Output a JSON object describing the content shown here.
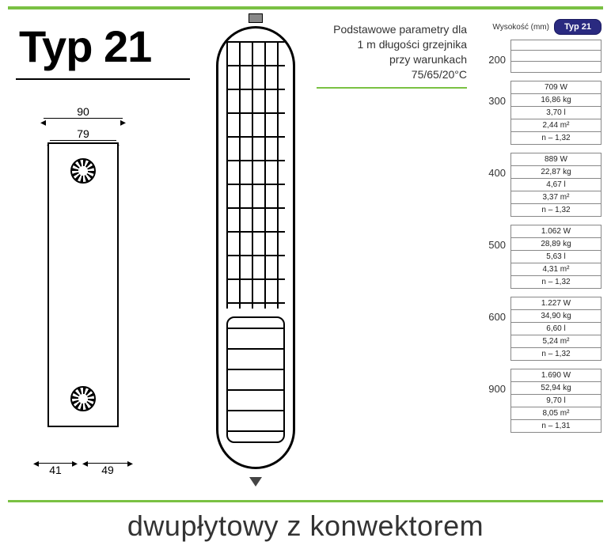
{
  "title": "Typ 21",
  "subtitle": "dwupłytowy z konwektorem",
  "parameters_label": [
    "Podstawowe parametry dla",
    "1 m długości grzejnika",
    "przy warunkach",
    "75/65/20°C"
  ],
  "side_dimensions": {
    "outer_width": "90",
    "inner_width": "79",
    "bottom_left": "41",
    "bottom_right": "49"
  },
  "table": {
    "column_label": "Wysokość (mm)",
    "chip_label": "Typ 21",
    "heights": [
      {
        "h": "200",
        "values": [
          "",
          "",
          ""
        ]
      },
      {
        "h": "300",
        "values": [
          "709 W",
          "16,86 kg",
          "3,70 l",
          "2,44 m²",
          "n – 1,32"
        ]
      },
      {
        "h": "400",
        "values": [
          "889 W",
          "22,87 kg",
          "4,67 l",
          "3,37 m²",
          "n – 1,32"
        ]
      },
      {
        "h": "500",
        "values": [
          "1.062 W",
          "28,89 kg",
          "5,63 l",
          "4,31 m²",
          "n – 1,32"
        ]
      },
      {
        "h": "600",
        "values": [
          "1.227 W",
          "34,90 kg",
          "6,60 l",
          "5,24 m²",
          "n – 1,32"
        ]
      },
      {
        "h": "900",
        "values": [
          "1.690 W",
          "52,94 kg",
          "9,70 l",
          "8,05 m²",
          "n – 1,31"
        ]
      }
    ]
  },
  "colors": {
    "accent": "#7ac143",
    "chip_bg": "#2a2a80",
    "text": "#333333",
    "border": "#888888"
  }
}
